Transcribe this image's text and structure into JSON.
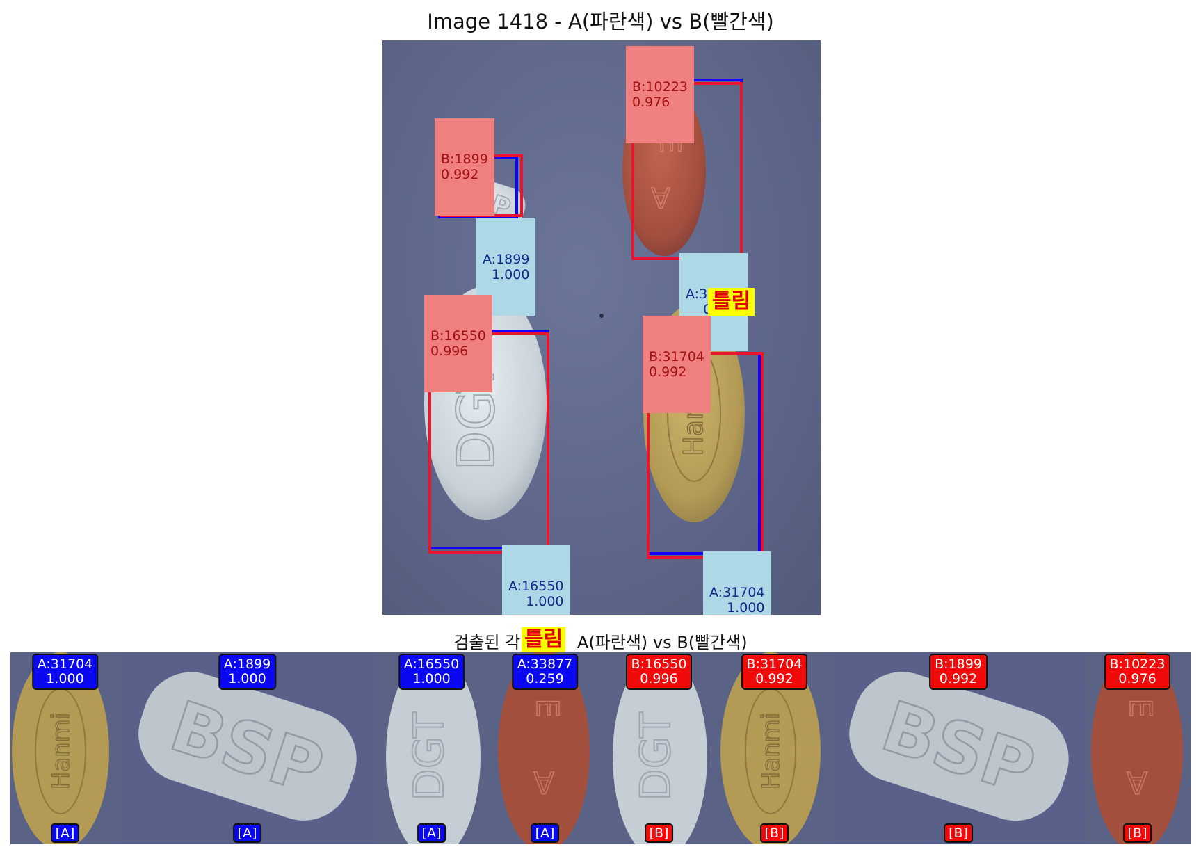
{
  "main_title": "Image 1418 - A(파란색) vs B(빨간색)",
  "strip_title_prefix": "검출된 각",
  "strip_title_suffix": " A(파란색) vs B(빨간색)",
  "mismatch_label": "틀림",
  "colors": {
    "model_a": "#1400ff",
    "model_b": "#e8152e",
    "label_a_bg": "#add8e6",
    "label_b_bg": "#f08080",
    "mismatch_bg": "#ffff00",
    "mismatch_text": "#e00000"
  },
  "detections": {
    "bsp": {
      "b_id": "B:1899",
      "b_score": "0.992",
      "a_id": "A:1899",
      "a_score": "1.000",
      "engraving": "BSP"
    },
    "red": {
      "b_id": "B:10223",
      "b_score": "0.976",
      "a_id": "A:33877",
      "a_score": "0.259",
      "engraving": "E A"
    },
    "white": {
      "b_id": "B:16550",
      "b_score": "0.996",
      "a_id": "A:16550",
      "a_score": "1.000",
      "engraving": "DGT"
    },
    "yellow": {
      "b_id": "B:31704",
      "b_score": "0.992",
      "a_id": "A:31704",
      "a_score": "1.000",
      "engraving": "Hanmi"
    }
  },
  "crops": [
    {
      "label": "A:31704\n1.000",
      "tag": "[A]"
    },
    {
      "label": "A:1899\n1.000",
      "tag": "[A]"
    },
    {
      "label": "A:16550\n1.000",
      "tag": "[A]"
    },
    {
      "label": "A:33877\n0.259",
      "tag": "[A]"
    },
    {
      "label": "B:16550\n0.996",
      "tag": "[B]"
    },
    {
      "label": "B:31704\n0.992",
      "tag": "[B]"
    },
    {
      "label": "B:1899\n0.992",
      "tag": "[B]"
    },
    {
      "label": "B:10223\n0.976",
      "tag": "[B]"
    }
  ]
}
